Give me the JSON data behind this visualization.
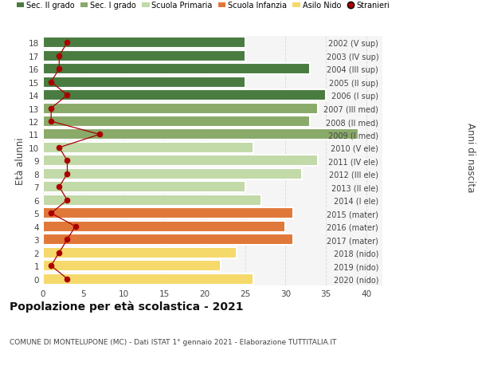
{
  "ages": [
    18,
    17,
    16,
    15,
    14,
    13,
    12,
    11,
    10,
    9,
    8,
    7,
    6,
    5,
    4,
    3,
    2,
    1,
    0
  ],
  "years": [
    "2002 (V sup)",
    "2003 (IV sup)",
    "2004 (III sup)",
    "2005 (II sup)",
    "2006 (I sup)",
    "2007 (III med)",
    "2008 (II med)",
    "2009 (I med)",
    "2010 (V ele)",
    "2011 (IV ele)",
    "2012 (III ele)",
    "2013 (II ele)",
    "2014 (I ele)",
    "2015 (mater)",
    "2016 (mater)",
    "2017 (mater)",
    "2018 (nido)",
    "2019 (nido)",
    "2020 (nido)"
  ],
  "bar_values": [
    25,
    25,
    33,
    25,
    35,
    34,
    33,
    39,
    26,
    34,
    32,
    25,
    27,
    31,
    30,
    31,
    24,
    22,
    26
  ],
  "bar_colors": [
    "#4a7c41",
    "#4a7c41",
    "#4a7c41",
    "#4a7c41",
    "#4a7c41",
    "#8aaa6a",
    "#8aaa6a",
    "#8aaa6a",
    "#c2d9a8",
    "#c2d9a8",
    "#c2d9a8",
    "#c2d9a8",
    "#c2d9a8",
    "#e0783a",
    "#e0783a",
    "#e0783a",
    "#f5d96a",
    "#f5d96a",
    "#f5d96a"
  ],
  "stranieri_values": [
    3,
    2,
    2,
    1,
    3,
    1,
    1,
    7,
    2,
    3,
    3,
    2,
    3,
    1,
    4,
    3,
    2,
    1,
    3
  ],
  "legend_labels": [
    "Sec. II grado",
    "Sec. I grado",
    "Scuola Primaria",
    "Scuola Infanzia",
    "Asilo Nido",
    "Stranieri"
  ],
  "legend_colors": [
    "#4a7c41",
    "#8aaa6a",
    "#c2d9a8",
    "#e0783a",
    "#f5d96a",
    "#aa0000"
  ],
  "title": "Popolazione per età scolastica - 2021",
  "subtitle": "COMUNE DI MONTELUPONE (MC) - Dati ISTAT 1° gennaio 2021 - Elaborazione TUTTITALIA.IT",
  "ylabel_left": "Età alunni",
  "ylabel_right": "Anni di nascita",
  "xlim": [
    0,
    42
  ],
  "ylim": [
    -0.5,
    18.5
  ],
  "xticks": [
    0,
    5,
    10,
    15,
    20,
    25,
    30,
    35,
    40
  ],
  "background_color": "#ffffff",
  "plot_bg_color": "#f5f5f5",
  "grid_color": "#dddddd",
  "stranieri_line_color": "#aa0000",
  "stranieri_dot_color": "#aa0000",
  "bar_height": 0.85,
  "bar_edgecolor": "#ffffff",
  "bar_linewidth": 1.5
}
